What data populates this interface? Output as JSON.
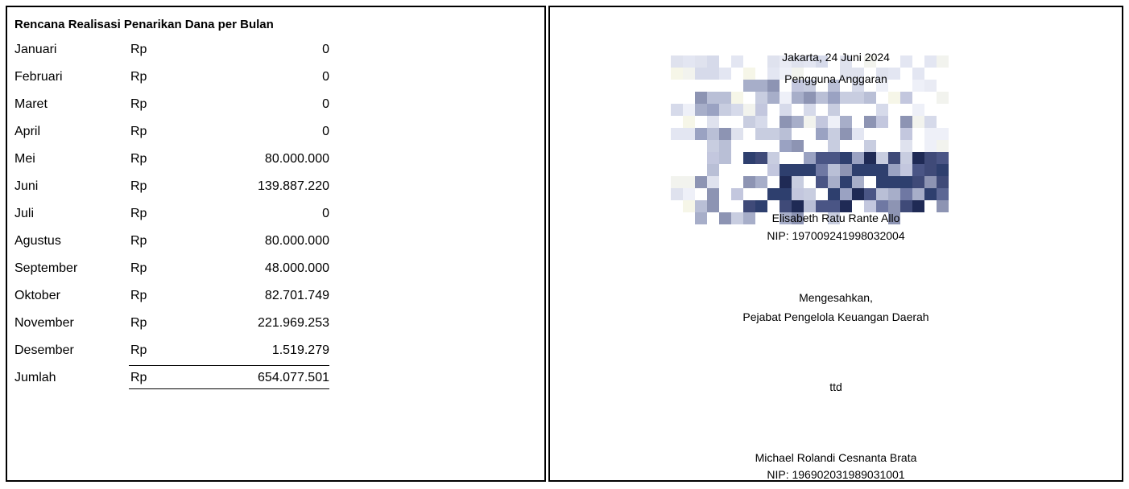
{
  "plan": {
    "title": "Rencana Realisasi Penarikan Dana per Bulan",
    "currency": "Rp",
    "months": [
      {
        "month": "Januari",
        "amount": "0"
      },
      {
        "month": "Februari",
        "amount": "0"
      },
      {
        "month": "Maret",
        "amount": "0"
      },
      {
        "month": "April",
        "amount": "0"
      },
      {
        "month": "Mei",
        "amount": "80.000.000"
      },
      {
        "month": "Juni",
        "amount": "139.887.220"
      },
      {
        "month": "Juli",
        "amount": "0"
      },
      {
        "month": "Agustus",
        "amount": "80.000.000"
      },
      {
        "month": "September",
        "amount": "48.000.000"
      },
      {
        "month": "Oktober",
        "amount": "82.701.749"
      },
      {
        "month": "November",
        "amount": "221.969.253"
      },
      {
        "month": "Desember",
        "amount": "1.519.279"
      }
    ],
    "total_label": "Jumlah",
    "total_amount": "654.077.501"
  },
  "approval": {
    "place_date": "Jakarta, 24 Juni 2024",
    "user_role": "Pengguna Anggaran",
    "user_name": "Elisabeth Ratu Rante Allo",
    "user_nip": "NIP: 197009241998032004",
    "endorse_label": "Mengesahkan,",
    "endorser_role": "Pejabat Pengelola Keuangan Daerah",
    "endorser_signature": "ttd",
    "endorser_name": "Michael Rolandi Cesnanta Brata",
    "endorser_nip": "NIP: 196902031989031001"
  },
  "signature_image": {
    "kind": "pixelated-signature",
    "ink_color": "#2e3f6e"
  }
}
